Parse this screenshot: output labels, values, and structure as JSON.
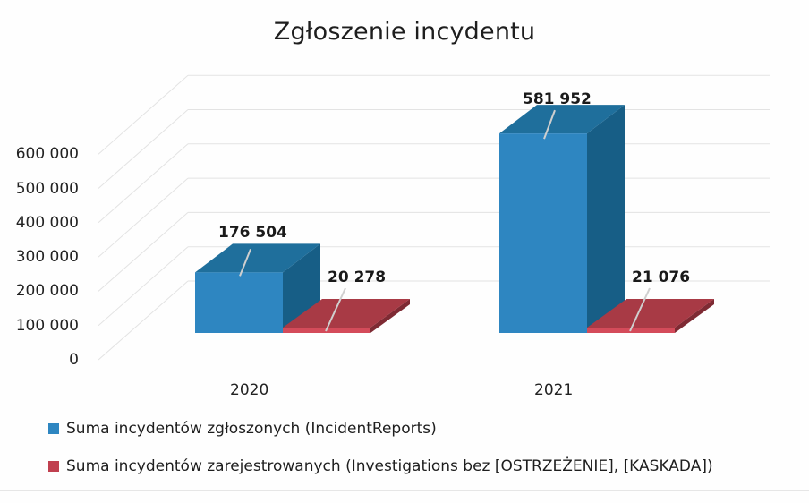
{
  "chart_data": {
    "type": "bar",
    "style": "3d-clustered-column",
    "title": "Zgłoszenie incydentu",
    "xlabel": "",
    "ylabel": "",
    "ylim": [
      0,
      600000
    ],
    "y_ticks": [
      "0",
      "100 000",
      "200 000",
      "300 000",
      "400 000",
      "500 000",
      "600 000"
    ],
    "categories": [
      "2020",
      "2021"
    ],
    "series": [
      {
        "name": "Suma incydentów zgłoszonych (IncidentReports)",
        "color": "#2e86c1",
        "values": [
          176504,
          581952
        ],
        "labels": [
          "176 504",
          "581 952"
        ]
      },
      {
        "name": "Suma incydentów zarejestrowanych (Investigations bez [OSTRZEŻENIE], [KASKADA])",
        "color": "#c0404f",
        "values": [
          20278,
          21076
        ],
        "labels": [
          "20 278",
          "21 076"
        ]
      }
    ],
    "grid": true,
    "legend_position": "bottom-left"
  },
  "colors": {
    "blue_front": "#2e86c1",
    "blue_top": "#1f6f9c",
    "blue_side": "#175e86",
    "red_front": "#d44b5a",
    "red_top": "#a83a45",
    "red_side": "#7e2a33",
    "grid": "#e3e3e3"
  }
}
